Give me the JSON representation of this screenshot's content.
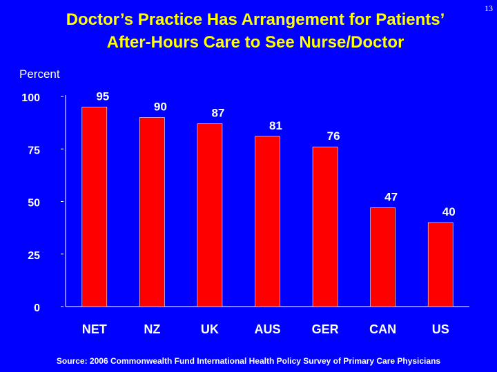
{
  "slide": {
    "title_line1": "Doctor’s Practice Has Arrangement for Patients’",
    "title_line2": "After-Hours Care to See Nurse/Doctor",
    "slide_number": "13",
    "source": "Source: 2006 Commonwealth Fund International Health Policy Survey of Primary Care Physicians"
  },
  "colors": {
    "background": "#0000ff",
    "title": "#ffff00",
    "text": "#ffffff",
    "bar": "#ff0000",
    "axis": "#ffffff"
  },
  "chart_data": {
    "type": "bar",
    "title": "Doctor’s Practice Has Arrangement for Patients’ After-Hours Care to See Nurse/Doctor",
    "ylabel": "Percent",
    "xlabel": "",
    "categories": [
      "NET",
      "NZ",
      "UK",
      "AUS",
      "GER",
      "CAN",
      "US"
    ],
    "values": [
      95,
      90,
      87,
      81,
      76,
      47,
      40
    ],
    "ylim": [
      0,
      100
    ],
    "yticks": [
      0,
      25,
      50,
      75,
      100
    ],
    "grid": false,
    "legend": "none"
  }
}
